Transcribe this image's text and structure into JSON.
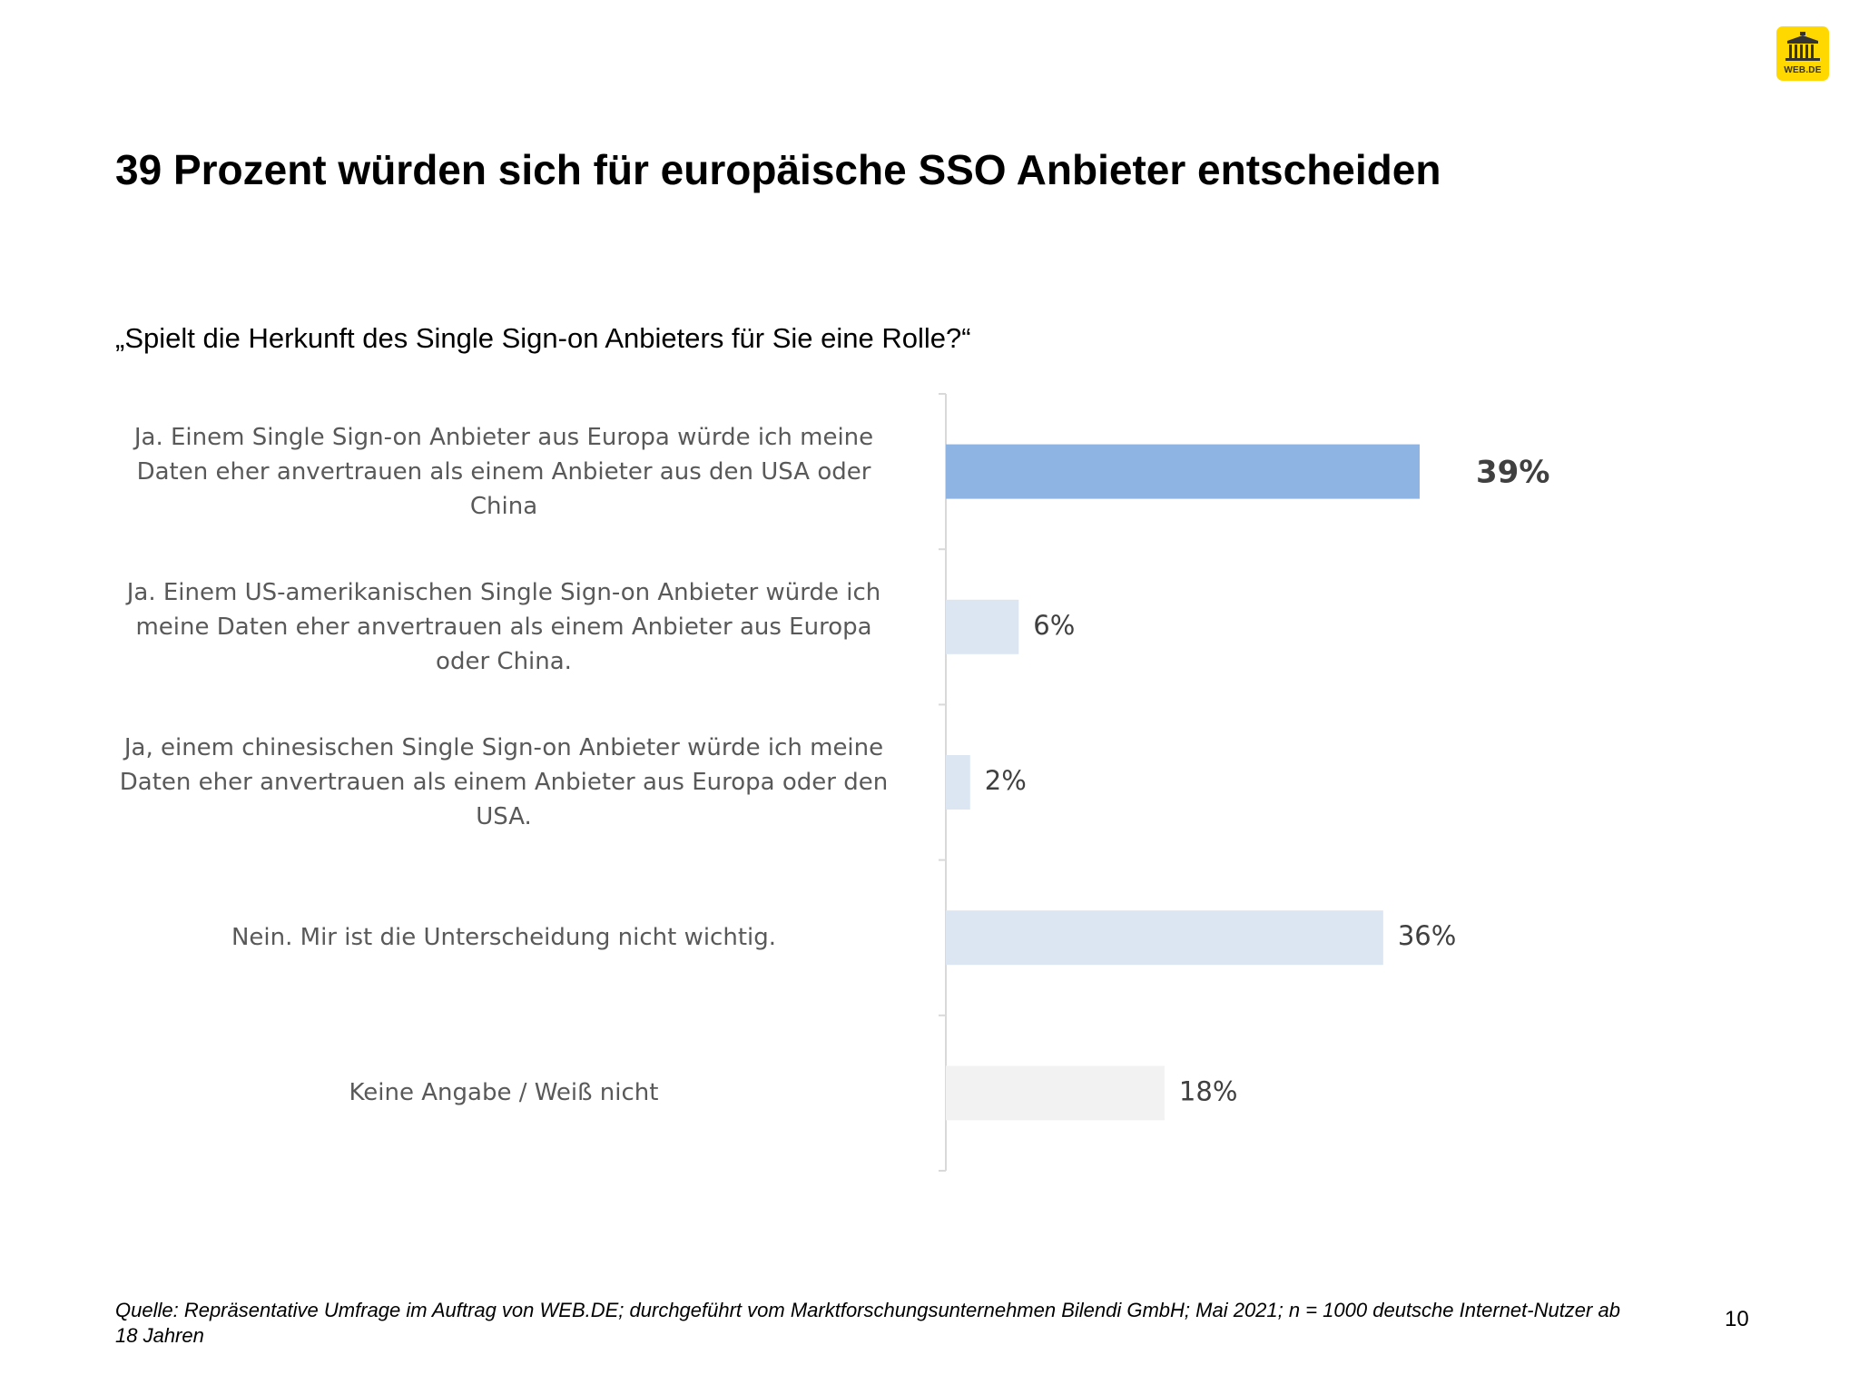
{
  "logo": {
    "text": "WEB.DE"
  },
  "title": "39 Prozent würden sich für europäische SSO Anbieter entscheiden",
  "question": "„Spielt die Herkunft des Single Sign-on Anbieters für Sie eine Rolle?“",
  "chart_data": {
    "type": "bar",
    "orientation": "horizontal",
    "categories": [
      "Ja. Einem Single Sign-on Anbieter aus Europa würde ich meine Daten eher anvertrauen als einem Anbieter aus den USA oder China",
      "Ja. Einem US-amerikanischen Single Sign-on Anbieter würde ich meine Daten eher anvertrauen als einem Anbieter aus Europa oder China.",
      "Ja, einem chinesischen Single Sign-on Anbieter würde ich meine Daten eher anvertrauen als einem Anbieter aus Europa oder den USA.",
      "Nein. Mir ist die Unterscheidung nicht wichtig.",
      "Keine Angabe / Weiß nicht"
    ],
    "category_lines": [
      [
        "Ja. Einem Single Sign-on Anbieter aus Europa würde ich meine",
        "Daten eher anvertrauen als einem Anbieter aus den USA oder",
        "China"
      ],
      [
        "Ja. Einem US-amerikanischen Single Sign-on Anbieter würde ich",
        "meine Daten eher anvertrauen als einem Anbieter aus Europa",
        "oder China."
      ],
      [
        "Ja, einem chinesischen Single Sign-on Anbieter würde ich meine",
        "Daten eher anvertrauen als einem Anbieter aus Europa oder den",
        "USA."
      ],
      [
        "Nein. Mir ist die Unterscheidung nicht wichtig."
      ],
      [
        "Keine Angabe / Weiß nicht"
      ]
    ],
    "values": [
      39,
      6,
      2,
      36,
      18
    ],
    "value_labels": [
      "39%",
      "6%",
      "2%",
      "36%",
      "18%"
    ],
    "bar_colors": [
      "#8eb4e3",
      "#dce6f2",
      "#dce6f2",
      "#dce6f2",
      "#f2f2f2"
    ],
    "highlight_index": 0,
    "xlim": [
      0,
      100
    ],
    "title": "",
    "xlabel": "",
    "ylabel": ""
  },
  "footer": {
    "source": "Quelle: Repräsentative Umfrage im Auftrag von WEB.DE; durchgeführt vom Marktforschungsunternehmen Bilendi GmbH; Mai 2021; n = 1000 deutsche Internet-Nutzer ab 18 Jahren",
    "page_number": "10"
  }
}
